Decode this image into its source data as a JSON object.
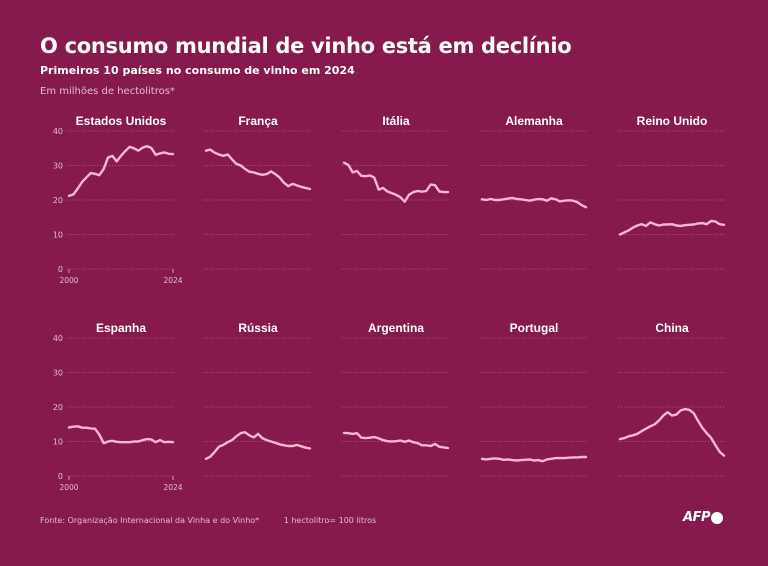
{
  "header": {
    "title": "O consumo mundial de vinho está em declínio",
    "subtitle": "Primeiros 10 países no consumo de vinho em 2024",
    "unit": "Em milhões de hectolitros*"
  },
  "footer": {
    "source": "Fonte: Organização Internacional da Vinha e do Vinho*",
    "note": "1 hectolitro= 100 litros"
  },
  "logo": {
    "text": "AFP"
  },
  "colors": {
    "background": "#861a4c",
    "line": "#f4b8cf",
    "grid": "#b4628a",
    "tick_text": "#e2bfd0"
  },
  "chart_data": {
    "type": "line",
    "small_multiples": true,
    "x": [
      2000,
      2001,
      2002,
      2003,
      2004,
      2005,
      2006,
      2007,
      2008,
      2009,
      2010,
      2011,
      2012,
      2013,
      2014,
      2015,
      2016,
      2017,
      2018,
      2019,
      2020,
      2021,
      2022,
      2023,
      2024
    ],
    "xticks": [
      "2000",
      "2024"
    ],
    "ylim": [
      0,
      40
    ],
    "yticks": [
      0,
      10,
      20,
      30,
      40
    ],
    "grid": "horizontal-dotted",
    "series": [
      {
        "name": "Estados Unidos",
        "values": [
          21.2,
          21.6,
          23.3,
          25.2,
          26.5,
          27.8,
          27.6,
          27.2,
          29.0,
          32.3,
          32.8,
          31.2,
          32.8,
          34.2,
          35.4,
          35.0,
          34.3,
          35.2,
          35.6,
          35.1,
          33.1,
          33.5,
          33.8,
          33.4,
          33.3
        ]
      },
      {
        "name": "França",
        "values": [
          34.3,
          34.6,
          33.7,
          33.2,
          32.8,
          33.2,
          31.8,
          30.5,
          30.0,
          29.0,
          28.2,
          28.0,
          27.6,
          27.3,
          27.5,
          28.3,
          27.5,
          26.5,
          25.0,
          24.0,
          24.7,
          24.2,
          23.8,
          23.5,
          23.2
        ]
      },
      {
        "name": "Itália",
        "values": [
          30.8,
          30.2,
          28.0,
          28.4,
          27.0,
          26.9,
          27.1,
          26.5,
          23.0,
          23.5,
          22.5,
          22.0,
          21.5,
          20.8,
          19.5,
          21.5,
          22.3,
          22.6,
          22.4,
          22.6,
          24.5,
          24.3,
          22.5,
          22.3,
          22.3
        ]
      },
      {
        "name": "Alemanha",
        "values": [
          20.2,
          20.0,
          20.3,
          20.0,
          20.0,
          20.2,
          20.4,
          20.6,
          20.3,
          20.2,
          20.0,
          19.8,
          20.1,
          20.3,
          20.2,
          19.8,
          20.5,
          20.2,
          19.6,
          19.8,
          19.9,
          19.8,
          19.4,
          18.5,
          17.9
        ]
      },
      {
        "name": "Reino Unido",
        "values": [
          10.0,
          10.6,
          11.2,
          12.0,
          12.6,
          13.0,
          12.5,
          13.5,
          13.0,
          12.6,
          12.9,
          12.9,
          13.0,
          12.6,
          12.5,
          12.7,
          12.8,
          12.9,
          13.2,
          13.3,
          13.0,
          13.9,
          13.8,
          13.0,
          12.8
        ]
      },
      {
        "name": "Espanha",
        "values": [
          14.1,
          14.3,
          14.4,
          14.0,
          14.0,
          13.8,
          13.7,
          12.0,
          9.5,
          10.0,
          10.2,
          9.9,
          9.8,
          9.8,
          9.8,
          10.0,
          10.0,
          10.4,
          10.7,
          10.6,
          9.8,
          10.4,
          9.8,
          9.9,
          9.8
        ]
      },
      {
        "name": "Rússia",
        "values": [
          5.0,
          5.6,
          7.0,
          8.5,
          9.0,
          9.8,
          10.4,
          11.5,
          12.4,
          12.7,
          11.8,
          11.2,
          12.2,
          11.0,
          10.4,
          10.0,
          9.6,
          9.2,
          8.9,
          8.7,
          8.7,
          9.0,
          8.6,
          8.2,
          8.0
        ]
      },
      {
        "name": "Argentina",
        "values": [
          12.5,
          12.4,
          12.2,
          12.4,
          11.1,
          11.0,
          11.1,
          11.3,
          10.9,
          10.4,
          10.1,
          10.0,
          10.1,
          10.3,
          9.9,
          10.3,
          9.8,
          9.5,
          8.9,
          8.9,
          8.7,
          9.3,
          8.5,
          8.3,
          8.1
        ]
      },
      {
        "name": "Portugal",
        "values": [
          5.0,
          4.8,
          5.0,
          5.1,
          5.0,
          4.7,
          4.8,
          4.6,
          4.5,
          4.6,
          4.7,
          4.8,
          4.5,
          4.6,
          4.3,
          4.8,
          5.0,
          5.2,
          5.2,
          5.2,
          5.3,
          5.4,
          5.4,
          5.5,
          5.5
        ]
      },
      {
        "name": "China",
        "values": [
          10.7,
          11.0,
          11.5,
          11.8,
          12.2,
          13.0,
          13.7,
          14.4,
          15.0,
          16.1,
          17.5,
          18.5,
          17.5,
          17.8,
          19.0,
          19.4,
          19.2,
          18.2,
          16.0,
          14.0,
          12.4,
          11.1,
          9.0,
          7.0,
          5.9
        ]
      }
    ]
  }
}
